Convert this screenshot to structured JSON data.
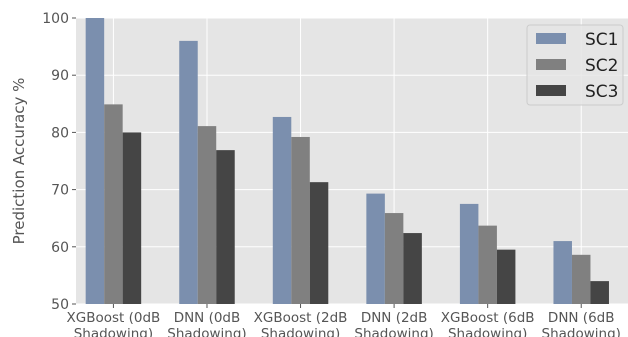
{
  "chart_data": {
    "type": "bar",
    "title": "",
    "xlabel": "",
    "ylabel": "Prediction Accuracy %",
    "ylim": [
      50,
      100
    ],
    "yticks": [
      50,
      60,
      70,
      80,
      90,
      100
    ],
    "grid": true,
    "legend_position": "top-right",
    "categories": [
      [
        "XGBoost (0dB",
        "Shadowing)"
      ],
      [
        "DNN (0dB",
        "Shadowing)"
      ],
      [
        "XGBoost (2dB",
        "Shadowing)"
      ],
      [
        "DNN (2dB",
        "Shadowing)"
      ],
      [
        "XGBoost (6dB",
        "Shadowing)"
      ],
      [
        "DNN (6dB",
        "Shadowing)"
      ]
    ],
    "series": [
      {
        "name": "SC1",
        "color": "#7b8fae",
        "values": [
          100,
          96,
          82.7,
          69.3,
          67.5,
          61
        ]
      },
      {
        "name": "SC2",
        "color": "#808080",
        "values": [
          84.9,
          81.1,
          79.2,
          65.9,
          63.7,
          58.6
        ]
      },
      {
        "name": "SC3",
        "color": "#454545",
        "values": [
          80,
          76.9,
          71.3,
          62.4,
          59.5,
          54
        ]
      }
    ]
  }
}
